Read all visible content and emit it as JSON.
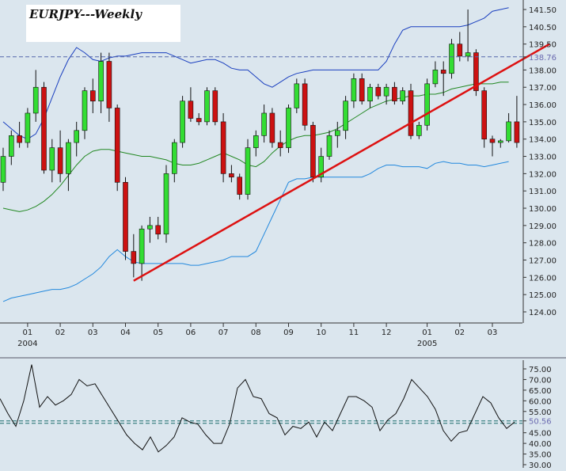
{
  "title": "EURJPY---Weekly",
  "colors": {
    "background": "#dbe6ee",
    "up_candle": "#33dd33",
    "down_candle": "#cc1111",
    "bollinger_band": "#1a3fbf",
    "lower_band": "#2288dd",
    "moving_average": "#228822",
    "trendline": "#dd1111",
    "reference_line": "#5566aa",
    "oscillator": "#111111",
    "oscillator_reference": "#1a6b6b"
  },
  "chart_data": [
    {
      "type": "candlestick",
      "title": "EURJPY---Weekly",
      "ylim": [
        123,
        142
      ],
      "y_ticks": [
        "141.50",
        "140.50",
        "139.50",
        "138.76",
        "138.00",
        "137.00",
        "136.00",
        "135.00",
        "134.00",
        "133.00",
        "132.00",
        "131.00",
        "130.00",
        "129.00",
        "128.00",
        "127.00",
        "126.00",
        "125.00",
        "124.00"
      ],
      "reference_price": "138.76",
      "x_ticks": [
        {
          "label": "01",
          "year": "2004",
          "index": 3
        },
        {
          "label": "02",
          "index": 7
        },
        {
          "label": "03",
          "index": 11
        },
        {
          "label": "04",
          "index": 15
        },
        {
          "label": "05",
          "index": 19
        },
        {
          "label": "06",
          "index": 23
        },
        {
          "label": "07",
          "index": 27
        },
        {
          "label": "08",
          "index": 31
        },
        {
          "label": "09",
          "index": 35
        },
        {
          "label": "10",
          "index": 39
        },
        {
          "label": "11",
          "index": 43
        },
        {
          "label": "12",
          "index": 47
        },
        {
          "label": "01",
          "year": "2005",
          "index": 52
        },
        {
          "label": "02",
          "index": 56
        },
        {
          "label": "03",
          "index": 60
        }
      ],
      "candles": [
        [
          131.5,
          133.5,
          131.0,
          133.0
        ],
        [
          133.0,
          134.5,
          132.5,
          134.2
        ],
        [
          134.2,
          135.0,
          133.5,
          133.8
        ],
        [
          133.8,
          135.8,
          133.5,
          135.5
        ],
        [
          135.5,
          138.0,
          135.0,
          137.0
        ],
        [
          137.0,
          137.3,
          132.0,
          132.2
        ],
        [
          132.2,
          134.0,
          131.5,
          133.5
        ],
        [
          133.5,
          134.5,
          131.5,
          132.0
        ],
        [
          132.0,
          134.0,
          131.0,
          133.8
        ],
        [
          133.8,
          135.0,
          133.0,
          134.5
        ],
        [
          134.5,
          137.0,
          134.0,
          136.8
        ],
        [
          136.8,
          137.5,
          135.5,
          136.2
        ],
        [
          136.2,
          139.0,
          135.5,
          138.5
        ],
        [
          138.5,
          139.0,
          135.0,
          135.8
        ],
        [
          135.8,
          136.0,
          131.0,
          131.5
        ],
        [
          131.5,
          131.8,
          127.0,
          127.5
        ],
        [
          127.5,
          128.5,
          126.0,
          126.8
        ],
        [
          126.8,
          129.0,
          125.8,
          128.8
        ],
        [
          128.8,
          129.5,
          128.0,
          129.0
        ],
        [
          129.0,
          129.5,
          128.2,
          128.5
        ],
        [
          128.5,
          132.5,
          128.0,
          132.0
        ],
        [
          132.0,
          134.0,
          131.5,
          133.8
        ],
        [
          133.8,
          136.5,
          133.5,
          136.2
        ],
        [
          136.2,
          137.0,
          135.0,
          135.2
        ],
        [
          135.2,
          135.5,
          134.8,
          135.0
        ],
        [
          135.0,
          137.0,
          134.8,
          136.8
        ],
        [
          136.8,
          137.0,
          134.8,
          135.0
        ],
        [
          135.0,
          135.5,
          131.5,
          132.0
        ],
        [
          132.0,
          132.5,
          131.5,
          131.8
        ],
        [
          131.8,
          132.0,
          130.5,
          130.8
        ],
        [
          130.8,
          134.0,
          130.5,
          133.5
        ],
        [
          133.5,
          134.5,
          133.0,
          134.2
        ],
        [
          134.2,
          136.0,
          133.8,
          135.5
        ],
        [
          135.5,
          135.8,
          133.5,
          133.8
        ],
        [
          133.8,
          134.5,
          133.0,
          133.5
        ],
        [
          133.5,
          136.0,
          133.2,
          135.8
        ],
        [
          135.8,
          137.5,
          135.5,
          137.2
        ],
        [
          137.2,
          137.5,
          134.5,
          134.8
        ],
        [
          134.8,
          135.0,
          131.5,
          131.8
        ],
        [
          131.8,
          133.5,
          131.5,
          133.0
        ],
        [
          133.0,
          134.5,
          132.8,
          134.2
        ],
        [
          134.2,
          135.0,
          133.5,
          134.5
        ],
        [
          134.5,
          136.5,
          134.0,
          136.2
        ],
        [
          136.2,
          137.8,
          135.8,
          137.5
        ],
        [
          137.5,
          137.8,
          136.0,
          136.2
        ],
        [
          136.2,
          137.2,
          135.8,
          137.0
        ],
        [
          137.0,
          137.2,
          136.3,
          136.5
        ],
        [
          136.5,
          137.2,
          136.0,
          137.0
        ],
        [
          137.0,
          137.3,
          136.0,
          136.2
        ],
        [
          136.2,
          137.0,
          136.0,
          136.8
        ],
        [
          136.8,
          137.2,
          134.0,
          134.2
        ],
        [
          134.2,
          135.0,
          134.0,
          134.8
        ],
        [
          134.8,
          137.5,
          134.5,
          137.2
        ],
        [
          137.2,
          138.5,
          137.0,
          138.0
        ],
        [
          138.0,
          138.5,
          136.5,
          137.8
        ],
        [
          137.8,
          139.8,
          137.5,
          139.5
        ],
        [
          139.5,
          140.2,
          138.5,
          138.8
        ],
        [
          138.8,
          141.5,
          138.5,
          139.0
        ],
        [
          139.0,
          139.2,
          136.5,
          136.8
        ],
        [
          136.8,
          137.0,
          133.5,
          134.0
        ],
        [
          134.0,
          134.2,
          133.0,
          133.8
        ],
        [
          133.8,
          134.0,
          133.5,
          133.9
        ],
        [
          133.9,
          135.5,
          133.8,
          135.0
        ],
        [
          135.0,
          136.5,
          133.5,
          133.8
        ]
      ],
      "candles_note": "",
      "moving_average": [
        130.0,
        129.9,
        129.8,
        129.9,
        130.1,
        130.4,
        130.8,
        131.3,
        131.9,
        132.5,
        133.0,
        133.3,
        133.4,
        133.4,
        133.3,
        133.2,
        133.1,
        133.0,
        133.0,
        132.9,
        132.8,
        132.6,
        132.5,
        132.5,
        132.6,
        132.8,
        133.0,
        133.2,
        133.0,
        132.8,
        132.5,
        132.4,
        132.7,
        133.2,
        133.6,
        133.9,
        134.1,
        134.2,
        134.2,
        134.3,
        134.4,
        134.6,
        134.9,
        135.2,
        135.5,
        135.8,
        136.0,
        136.2,
        136.3,
        136.4,
        136.5,
        136.5,
        136.6,
        136.6,
        136.7,
        136.9,
        137.0,
        137.1,
        137.2,
        137.2,
        137.2,
        137.3,
        137.3
      ],
      "upper_band": [
        135.0,
        134.6,
        134.2,
        134.0,
        134.3,
        135.2,
        136.4,
        137.6,
        138.6,
        139.3,
        139.0,
        138.6,
        138.5,
        138.7,
        138.8,
        138.8,
        138.9,
        139.0,
        139.0,
        139.0,
        139.0,
        138.8,
        138.6,
        138.4,
        138.5,
        138.6,
        138.6,
        138.4,
        138.1,
        138.0,
        138.0,
        137.6,
        137.2,
        137.0,
        137.3,
        137.6,
        137.8,
        137.9,
        138.0,
        138.0,
        138.0,
        138.0,
        138.0,
        138.0,
        138.0,
        138.0,
        138.0,
        138.5,
        139.5,
        140.3,
        140.5,
        140.5,
        140.5,
        140.5,
        140.5,
        140.5,
        140.5,
        140.6,
        140.8,
        141.0,
        141.4,
        141.5,
        141.6
      ],
      "lower_band": [
        124.6,
        124.8,
        124.9,
        125.0,
        125.1,
        125.2,
        125.3,
        125.3,
        125.4,
        125.6,
        125.9,
        126.2,
        126.6,
        127.2,
        127.6,
        127.2,
        126.9,
        126.8,
        126.8,
        126.8,
        126.8,
        126.8,
        126.8,
        126.7,
        126.7,
        126.8,
        126.9,
        127.0,
        127.2,
        127.2,
        127.2,
        127.5,
        128.5,
        129.5,
        130.5,
        131.5,
        131.7,
        131.7,
        131.8,
        131.8,
        131.8,
        131.8,
        131.8,
        131.8,
        131.8,
        132.0,
        132.3,
        132.5,
        132.5,
        132.4,
        132.4,
        132.4,
        132.3,
        132.6,
        132.7,
        132.6,
        132.6,
        132.5,
        132.5,
        132.4,
        132.5,
        132.6,
        132.7
      ],
      "trendline": {
        "start_index": 16,
        "start_price": 125.8,
        "end_index": 67,
        "end_price": 139.5
      }
    },
    {
      "type": "line",
      "title": "",
      "ylim": [
        30,
        80
      ],
      "y_ticks": [
        "75.00",
        "70.00",
        "65.00",
        "60.00",
        "55.00",
        "50.56",
        "45.00",
        "40.00",
        "35.00",
        "30.00"
      ],
      "reference_value": "50.56",
      "values": [
        61,
        54,
        48,
        60,
        77,
        57,
        62,
        58,
        60,
        63,
        70,
        67,
        68,
        62,
        56,
        50,
        44,
        40,
        37,
        43,
        36,
        39,
        43,
        52,
        50,
        49,
        44,
        40,
        40,
        49,
        66,
        70,
        62,
        61,
        54,
        52,
        44,
        48,
        47,
        50,
        43,
        50,
        46,
        54,
        62,
        62,
        60,
        57,
        46,
        51,
        54,
        61,
        70,
        66,
        62,
        56,
        46,
        41,
        45,
        46,
        54,
        62,
        59,
        52,
        47,
        50
      ]
    }
  ]
}
